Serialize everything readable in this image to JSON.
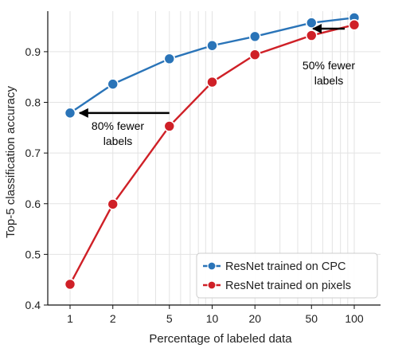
{
  "chart_data": {
    "type": "line",
    "x_scale": "log",
    "x": [
      1,
      2,
      5,
      10,
      20,
      50,
      100
    ],
    "x_tick_labels": [
      "1",
      "2",
      "5",
      "10",
      "20",
      "50",
      "100"
    ],
    "xlabel": "Percentage of labeled data",
    "ylabel": "Top-5 classification accuracy",
    "ylim": [
      0.4,
      0.98
    ],
    "y_ticks": [
      0.4,
      0.5,
      0.6,
      0.7,
      0.8,
      0.9
    ],
    "y_tick_labels": [
      "0.4",
      "0.5",
      "0.6",
      "0.7",
      "0.8",
      "0.9"
    ],
    "grid": true,
    "legend_position": "bottom-right",
    "series": [
      {
        "name": "ResNet trained on CPC",
        "color": "#2a74b8",
        "values": [
          0.779,
          0.836,
          0.886,
          0.912,
          0.93,
          0.957,
          0.967
        ]
      },
      {
        "name": "ResNet trained on pixels",
        "color": "#cf2027",
        "values": [
          0.441,
          0.599,
          0.753,
          0.84,
          0.894,
          0.932,
          0.953
        ]
      }
    ],
    "annotations": [
      {
        "lines": [
          "80% fewer",
          "labels"
        ],
        "arrow_from_x": 5,
        "arrow_to_x": 1,
        "arrow_y": 0.779
      },
      {
        "lines": [
          "50% fewer",
          "labels"
        ],
        "arrow_from_x": 100,
        "arrow_to_x": 50,
        "arrow_y": 0.932
      }
    ]
  }
}
